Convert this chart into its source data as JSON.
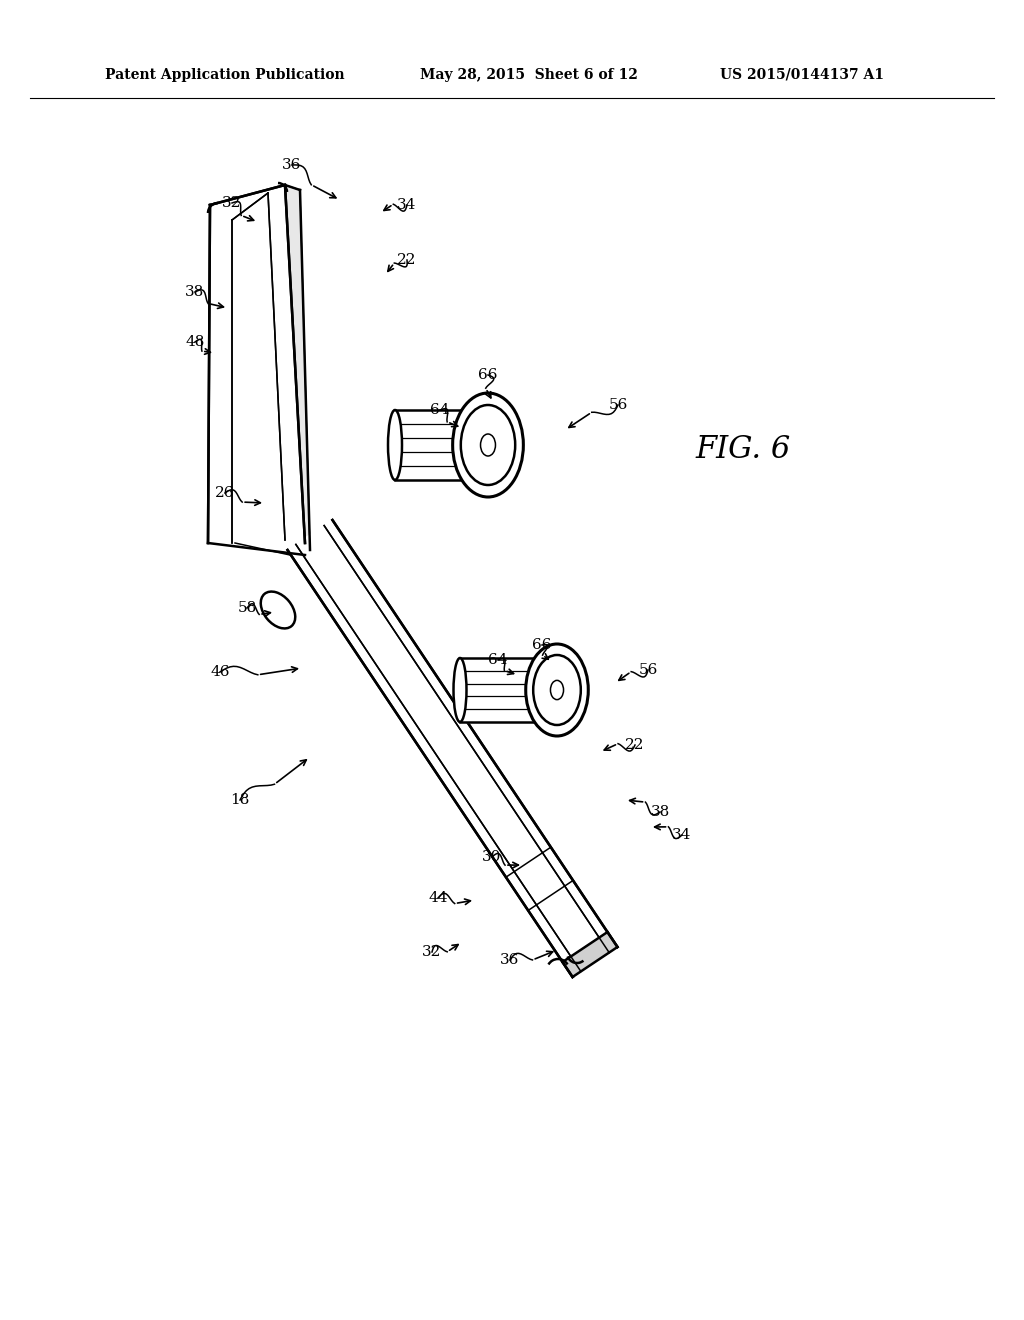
{
  "background_color": "#ffffff",
  "header_left": "Patent Application Publication",
  "header_center": "May 28, 2015  Sheet 6 of 12",
  "header_right": "US 2015/0144137 A1",
  "figure_label": "FIG. 6",
  "header_fontsize": 10,
  "fig_label_fontsize": 22,
  "annotation_fontsize": 11,
  "lw_main": 1.8,
  "lw_thin": 1.1,
  "lw_thick": 2.2
}
